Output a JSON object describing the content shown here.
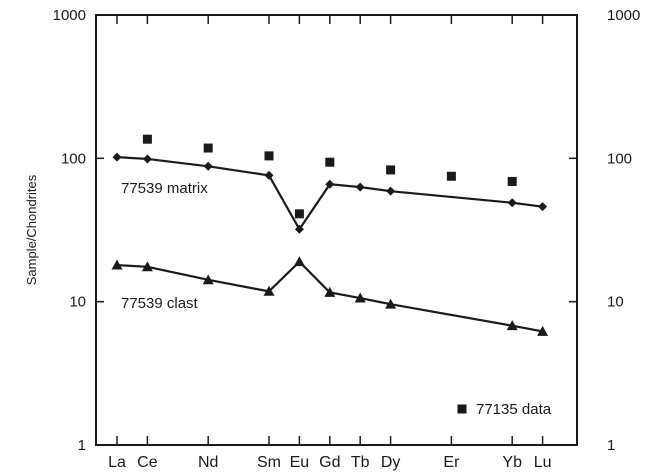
{
  "chart_data": {
    "type": "line",
    "title": "",
    "xlabel": "",
    "ylabel": "Sample/Chondrites",
    "yscale": "log",
    "ylim": [
      1,
      1000
    ],
    "y_ticks": [
      {
        "value": 1,
        "label": "1"
      },
      {
        "value": 10,
        "label": "10"
      },
      {
        "value": 100,
        "label": "100"
      },
      {
        "value": 1000,
        "label": "1000"
      }
    ],
    "categories": [
      "La",
      "Ce",
      "Nd",
      "Sm",
      "Eu",
      "Gd",
      "Tb",
      "Dy",
      "Er",
      "Yb",
      "Lu"
    ],
    "x_positions": [
      1,
      2,
      4,
      6,
      7,
      8,
      9,
      10,
      12,
      14,
      15
    ],
    "series": [
      {
        "name": "77539 matrix",
        "marker": "diamond",
        "connected": true,
        "points": [
          {
            "el": "La",
            "x": 1,
            "y": 102
          },
          {
            "el": "Ce",
            "x": 2,
            "y": 99
          },
          {
            "el": "Nd",
            "x": 4,
            "y": 88
          },
          {
            "el": "Sm",
            "x": 6,
            "y": 76
          },
          {
            "el": "Eu",
            "x": 7,
            "y": 32
          },
          {
            "el": "Gd",
            "x": 8,
            "y": 66
          },
          {
            "el": "Tb",
            "x": 9,
            "y": 63
          },
          {
            "el": "Dy",
            "x": 10,
            "y": 59
          },
          {
            "el": "Yb",
            "x": 14,
            "y": 49
          },
          {
            "el": "Lu",
            "x": 15,
            "y": 46
          }
        ]
      },
      {
        "name": "77539 clast",
        "marker": "triangle",
        "connected": true,
        "points": [
          {
            "el": "La",
            "x": 1,
            "y": 18
          },
          {
            "el": "Ce",
            "x": 2,
            "y": 17.5
          },
          {
            "el": "Nd",
            "x": 4,
            "y": 14.2
          },
          {
            "el": "Sm",
            "x": 6,
            "y": 11.8
          },
          {
            "el": "Eu",
            "x": 7,
            "y": 19
          },
          {
            "el": "Gd",
            "x": 8,
            "y": 11.6
          },
          {
            "el": "Tb",
            "x": 9,
            "y": 10.6
          },
          {
            "el": "Dy",
            "x": 10,
            "y": 9.6
          },
          {
            "el": "Yb",
            "x": 14,
            "y": 6.8
          },
          {
            "el": "Lu",
            "x": 15,
            "y": 6.2
          }
        ]
      },
      {
        "name": "77135 data",
        "marker": "square",
        "connected": false,
        "points": [
          {
            "el": "Ce",
            "x": 2,
            "y": 136
          },
          {
            "el": "Nd",
            "x": 4,
            "y": 118
          },
          {
            "el": "Sm",
            "x": 6,
            "y": 104
          },
          {
            "el": "Eu",
            "x": 7,
            "y": 41
          },
          {
            "el": "Gd",
            "x": 8,
            "y": 94
          },
          {
            "el": "Dy",
            "x": 10,
            "y": 83
          },
          {
            "el": "Er",
            "x": 12,
            "y": 75
          },
          {
            "el": "Yb",
            "x": 14,
            "y": 69
          }
        ]
      }
    ],
    "legend": {
      "placement": "bottom-right",
      "entry": "77135 data"
    },
    "grid": false
  },
  "colors": {
    "ink": "#1a1a1a",
    "background": "#ffffff"
  }
}
